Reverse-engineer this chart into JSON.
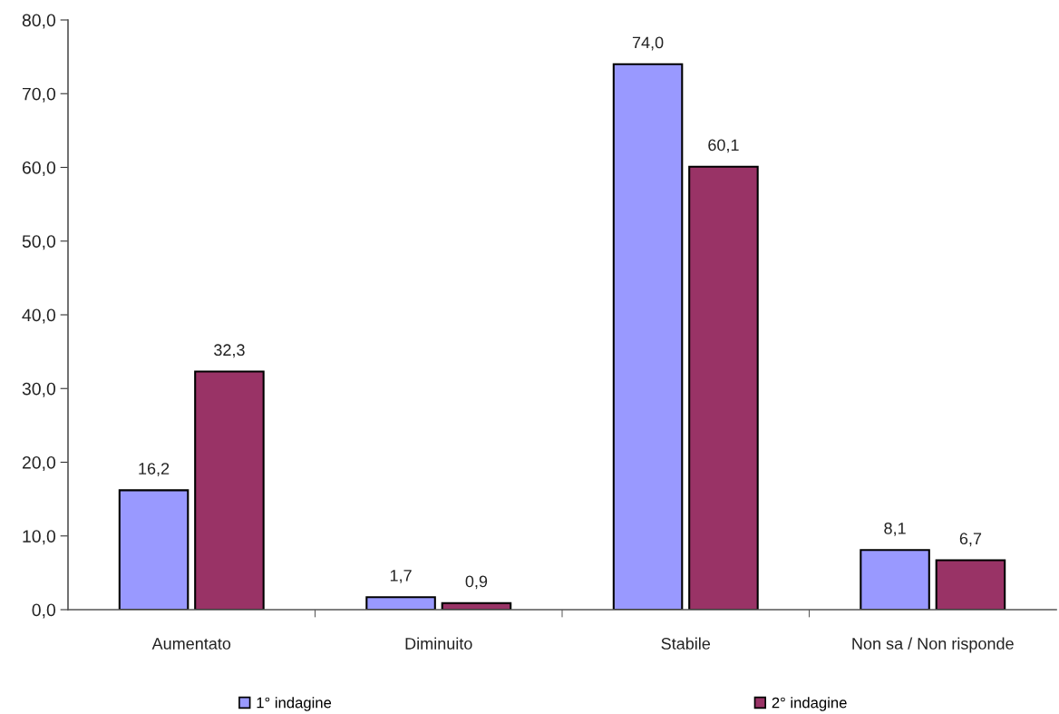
{
  "chart_data": {
    "type": "bar",
    "categories": [
      "Aumentato",
      "Diminuito",
      "Stabile",
      "Non sa / Non risponde"
    ],
    "series": [
      {
        "name": "1° indagine",
        "color": "#9999ff",
        "values": [
          16.2,
          1.7,
          74.0,
          8.1
        ],
        "value_labels": [
          "16,2",
          "1,7",
          "74,0",
          "8,1"
        ]
      },
      {
        "name": "2° indagine",
        "color": "#993366",
        "values": [
          32.3,
          0.9,
          60.1,
          6.7
        ],
        "value_labels": [
          "32,3",
          "0,9",
          "60,1",
          "6,7"
        ]
      }
    ],
    "ylim": [
      0,
      80
    ],
    "yticks": [
      {
        "value": 0,
        "label": "0,0"
      },
      {
        "value": 10,
        "label": "10,0"
      },
      {
        "value": 20,
        "label": "20,0"
      },
      {
        "value": 30,
        "label": "30,0"
      },
      {
        "value": 40,
        "label": "40,0"
      },
      {
        "value": 50,
        "label": "50,0"
      },
      {
        "value": 60,
        "label": "60,0"
      },
      {
        "value": 70,
        "label": "70,0"
      },
      {
        "value": 80,
        "label": "80,0"
      }
    ],
    "legend": "bottom"
  }
}
